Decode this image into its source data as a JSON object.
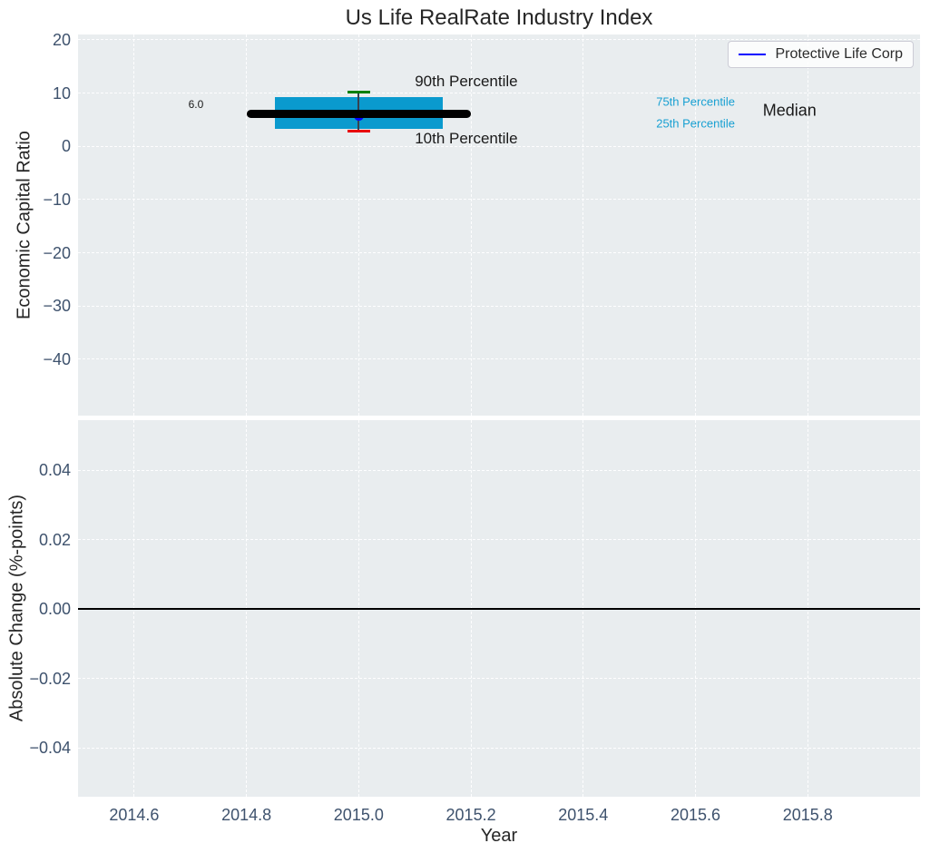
{
  "title": "Us Life RealRate Industry Index",
  "legend": {
    "label": "Protective Life Corp"
  },
  "colors": {
    "axes_bg": "#e9edef",
    "grid": "#ffffff",
    "tick_label": "#3e526d",
    "text": "#262626",
    "annotation_black": "#1a1a1a",
    "percentile_text": "#18a0d2",
    "box_fill": "#0a9ace",
    "whisker": "#37414f",
    "cap_90": "#008000",
    "cap_10": "#e8000b",
    "median_line": "#000000",
    "company_marker": "#0000ff",
    "legend_line": "#0000ff",
    "zero_line": "#000000"
  },
  "chart_data": {
    "type": "boxplot",
    "title": "Us Life RealRate Industry Index",
    "xlabel": "Year",
    "xlim": [
      2014.5,
      2016.0
    ],
    "grid": "dashed-white",
    "legend_position": "upper right",
    "xticks": [
      {
        "v": 2014.6,
        "label": "2014.6"
      },
      {
        "v": 2014.8,
        "label": "2014.8"
      },
      {
        "v": 2015.0,
        "label": "2015.0"
      },
      {
        "v": 2015.2,
        "label": "2015.2"
      },
      {
        "v": 2015.4,
        "label": "2015.4"
      },
      {
        "v": 2015.6,
        "label": "2015.6"
      },
      {
        "v": 2015.8,
        "label": "2015.8"
      }
    ],
    "top_panel": {
      "ylabel": "Economic Capital Ratio",
      "ylim": [
        -50.6,
        21.0
      ],
      "yticks": [
        {
          "v": 20,
          "label": "20"
        },
        {
          "v": 10,
          "label": "10"
        },
        {
          "v": 0,
          "label": "0"
        },
        {
          "v": -10,
          "label": "−10"
        },
        {
          "v": -20,
          "label": "−20"
        },
        {
          "v": -30,
          "label": "−30"
        },
        {
          "v": -40,
          "label": "−40"
        }
      ],
      "box": {
        "x": 2015.0,
        "box_left": 2014.85,
        "box_right": 2015.15,
        "median_left": 2014.8,
        "median_right": 2015.2,
        "cap_left": 2014.98,
        "cap_right": 2015.02,
        "p90": 10.2,
        "p75": 9.3,
        "median": 6.0,
        "p25": 3.3,
        "p10": 2.8,
        "company_value": 5.8
      },
      "annotations": [
        {
          "id": "p90-label",
          "text": "90th Percentile",
          "x": 2015.1,
          "y": 12.2,
          "size": 17,
          "color": "#1a1a1a",
          "align": "left"
        },
        {
          "id": "p10-label",
          "text": "10th Percentile",
          "x": 2015.1,
          "y": 1.4,
          "size": 17,
          "color": "#1a1a1a",
          "align": "left"
        },
        {
          "id": "median-value-label",
          "text": "6.0",
          "x": 2014.71,
          "y": 7.9,
          "size": 12,
          "color": "#1a1a1a",
          "align": "center"
        },
        {
          "id": "p75-label",
          "text": "75th Percentile",
          "x": 2015.53,
          "y": 8.3,
          "size": 13,
          "color": "#18a0d2",
          "align": "left"
        },
        {
          "id": "p25-label",
          "text": "25th Percentile",
          "x": 2015.53,
          "y": 4.3,
          "size": 13,
          "color": "#18a0d2",
          "align": "left"
        },
        {
          "id": "median-label",
          "text": "Median",
          "x": 2015.72,
          "y": 6.7,
          "size": 18,
          "color": "#1a1a1a",
          "align": "left"
        }
      ]
    },
    "bottom_panel": {
      "ylabel": "Absolute Change (%-points)",
      "ylim": [
        -0.054,
        0.0544
      ],
      "yticks": [
        {
          "v": 0.04,
          "label": "0.04"
        },
        {
          "v": 0.02,
          "label": "0.02"
        },
        {
          "v": 0.0,
          "label": "0.00"
        },
        {
          "v": -0.02,
          "label": "−0.02"
        },
        {
          "v": -0.04,
          "label": "−0.04"
        }
      ],
      "zero_line_y": 0.0
    }
  }
}
